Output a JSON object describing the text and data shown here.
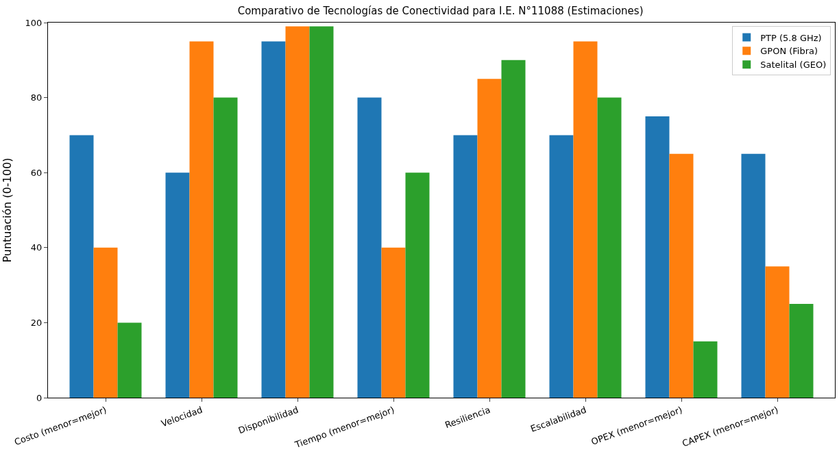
{
  "chart_data": {
    "type": "bar",
    "title": "Comparativo de Tecnologías de Conectividad para I.E. N°11088 (Estimaciones)",
    "ylabel": "Puntuación (0-100)",
    "categories": [
      "Costo (menor=mejor)",
      "Velocidad",
      "Disponibilidad",
      "Tiempo (menor=mejor)",
      "Resiliencia",
      "Escalabilidad",
      "OPEX (menor=mejor)",
      "CAPEX (menor=mejor)"
    ],
    "series": [
      {
        "name": "PTP (5.8 GHz)",
        "color": "#1f77b4",
        "values": [
          70,
          60,
          95,
          80,
          70,
          70,
          75,
          65
        ]
      },
      {
        "name": "GPON (Fibra)",
        "color": "#ff7f0e",
        "values": [
          40,
          95,
          99,
          40,
          85,
          95,
          65,
          35
        ]
      },
      {
        "name": "Satelital (GEO)",
        "color": "#2ca02c",
        "values": [
          20,
          80,
          99,
          60,
          90,
          80,
          15,
          25
        ]
      }
    ],
    "ylim": [
      0,
      100
    ],
    "yticks": [
      0,
      20,
      40,
      60,
      80,
      100
    ],
    "legend": "top right"
  }
}
